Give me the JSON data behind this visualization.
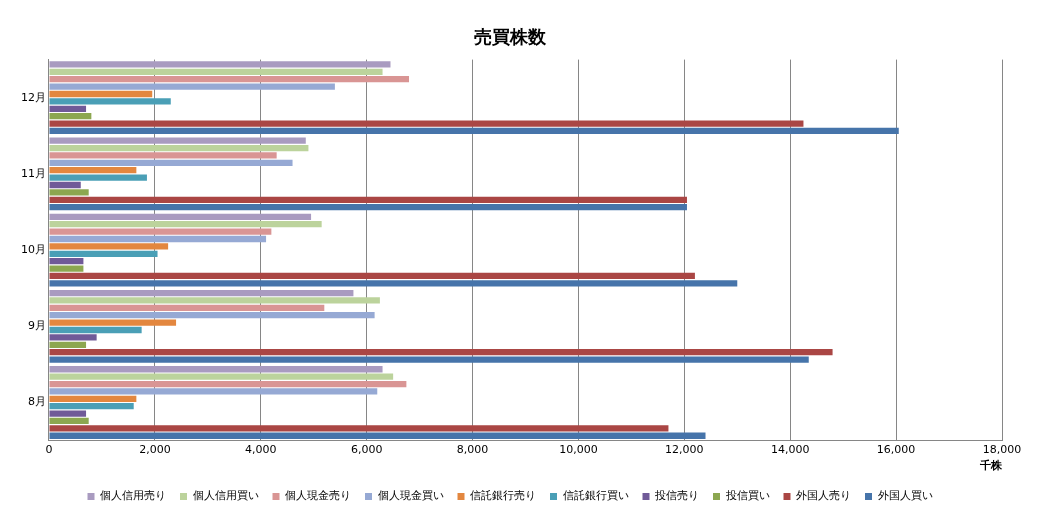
{
  "chart_data": {
    "type": "bar",
    "orientation": "horizontal",
    "title": "売買株数",
    "xlabel": "千株",
    "categories": [
      "12月",
      "11月",
      "10月",
      "9月",
      "8月"
    ],
    "series": [
      {
        "name": "個人信用売り",
        "color": "#a99bc0",
        "values": [
          6450,
          4850,
          4950,
          5750,
          6300
        ]
      },
      {
        "name": "個人信用買い",
        "color": "#bcd39c",
        "values": [
          6300,
          4900,
          5150,
          6250,
          6500
        ]
      },
      {
        "name": "個人現金売り",
        "color": "#d99594",
        "values": [
          6800,
          4300,
          4200,
          5200,
          6750
        ]
      },
      {
        "name": "個人現金買い",
        "color": "#96a9d4",
        "values": [
          5400,
          4600,
          4100,
          6150,
          6200
        ]
      },
      {
        "name": "信託銀行売り",
        "color": "#e3873f",
        "values": [
          1950,
          1650,
          2250,
          2400,
          1650
        ]
      },
      {
        "name": "信託銀行買い",
        "color": "#4a9fb6",
        "values": [
          2300,
          1850,
          2050,
          1750,
          1600
        ]
      },
      {
        "name": "投信売り",
        "color": "#705a98",
        "values": [
          700,
          600,
          650,
          900,
          700
        ]
      },
      {
        "name": "投信買い",
        "color": "#8ca750",
        "values": [
          800,
          750,
          650,
          700,
          750
        ]
      },
      {
        "name": "外国人売り",
        "color": "#aa4644",
        "values": [
          14250,
          12050,
          12200,
          14800,
          11700
        ]
      },
      {
        "name": "外国人買い",
        "color": "#4674aa",
        "values": [
          16050,
          12050,
          13000,
          14350,
          12400
        ]
      }
    ],
    "xlim": [
      0,
      18000
    ],
    "xticks": [
      0,
      {
        "value": 2000,
        "label": "2,000"
      },
      {
        "value": 4000,
        "label": "4,000"
      },
      {
        "value": 6000,
        "label": "6,000"
      },
      {
        "value": 8000,
        "label": "8,000"
      },
      {
        "value": 10000,
        "label": "10,000"
      },
      {
        "value": 12000,
        "label": "12,000"
      },
      {
        "value": 14000,
        "label": "14,000"
      },
      {
        "value": 16000,
        "label": "16,000"
      },
      {
        "value": 18000,
        "label": "18,000"
      }
    ],
    "grid": "x",
    "legend": "bottom"
  }
}
